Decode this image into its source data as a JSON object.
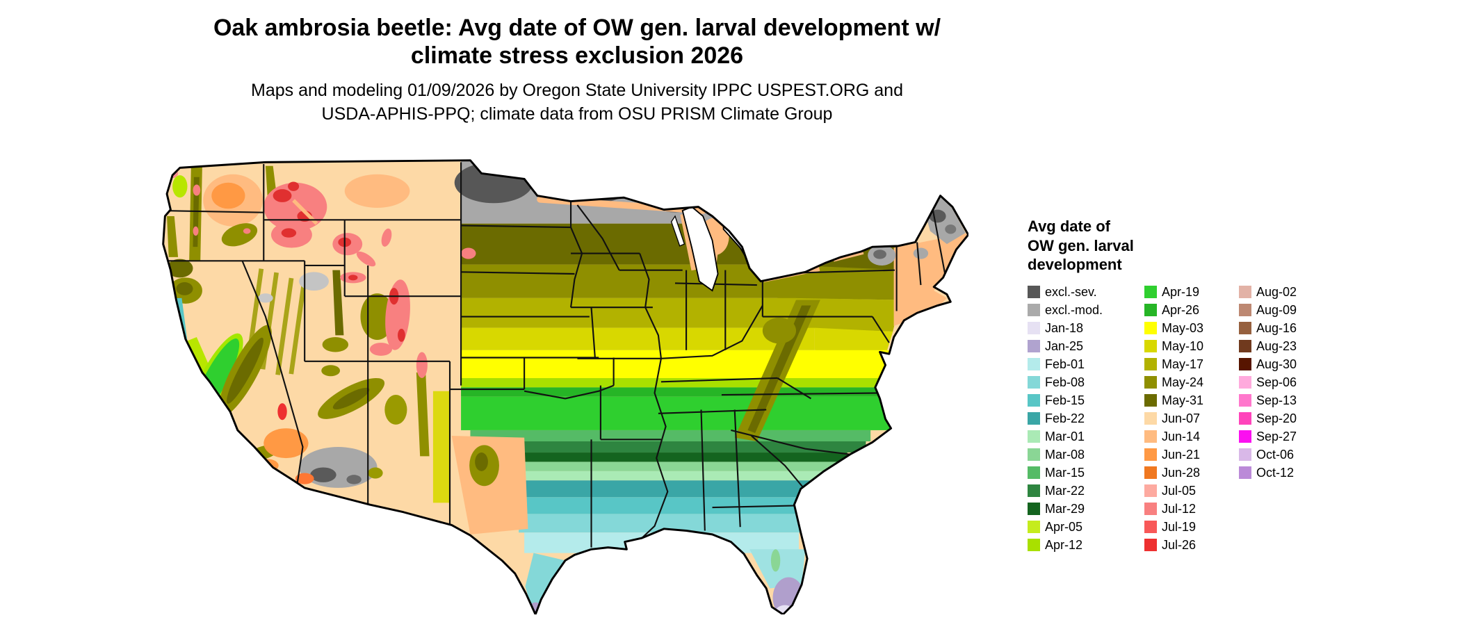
{
  "header": {
    "title": "Oak ambrosia beetle: Avg date of OW gen. larval development w/\nclimate stress exclusion 2026",
    "subtitle": "Maps and modeling 01/09/2026 by Oregon State University IPPC USPEST.ORG and\nUSDA-APHIS-PPQ; climate data from OSU PRISM Climate Group"
  },
  "legend": {
    "title": "Avg date of\nOW gen. larval\ndevelopment",
    "columns": [
      [
        {
          "label": "excl.-sev.",
          "color": "#575757"
        },
        {
          "label": "excl.-mod.",
          "color": "#aaaaaa"
        },
        {
          "label": "Jan-18",
          "color": "#e6e1f3"
        },
        {
          "label": "Jan-25",
          "color": "#b0a3cf"
        },
        {
          "label": "Feb-01",
          "color": "#b4ebeb"
        },
        {
          "label": "Feb-08",
          "color": "#84d8d8"
        },
        {
          "label": "Feb-15",
          "color": "#58c6c6"
        },
        {
          "label": "Feb-22",
          "color": "#3aa6a6"
        },
        {
          "label": "Mar-01",
          "color": "#aaeab5"
        },
        {
          "label": "Mar-08",
          "color": "#8ad695"
        },
        {
          "label": "Mar-15",
          "color": "#55bb66"
        },
        {
          "label": "Mar-22",
          "color": "#2e8540"
        },
        {
          "label": "Mar-29",
          "color": "#14641f"
        },
        {
          "label": "Apr-05",
          "color": "#c5ec1e"
        },
        {
          "label": "Apr-12",
          "color": "#a9e000"
        }
      ],
      [
        {
          "label": "Apr-19",
          "color": "#2fcf2f"
        },
        {
          "label": "Apr-26",
          "color": "#26b526"
        },
        {
          "label": "May-03",
          "color": "#ffff00"
        },
        {
          "label": "May-10",
          "color": "#d8d800"
        },
        {
          "label": "May-17",
          "color": "#b2b200"
        },
        {
          "label": "May-24",
          "color": "#8f8f00"
        },
        {
          "label": "May-31",
          "color": "#6b6b00"
        },
        {
          "label": "Jun-07",
          "color": "#fdd9a6"
        },
        {
          "label": "Jun-14",
          "color": "#ffbb80"
        },
        {
          "label": "Jun-21",
          "color": "#ff9944"
        },
        {
          "label": "Jun-28",
          "color": "#f07820"
        },
        {
          "label": "Jul-05",
          "color": "#fdaaa0"
        },
        {
          "label": "Jul-12",
          "color": "#f88080"
        },
        {
          "label": "Jul-19",
          "color": "#f85858"
        },
        {
          "label": "Jul-26",
          "color": "#ee3030"
        }
      ],
      [
        {
          "label": "Aug-02",
          "color": "#e2b2a6"
        },
        {
          "label": "Aug-09",
          "color": "#bd8872"
        },
        {
          "label": "Aug-16",
          "color": "#96603e"
        },
        {
          "label": "Aug-23",
          "color": "#703a1e"
        },
        {
          "label": "Aug-30",
          "color": "#571500"
        },
        {
          "label": "Sep-06",
          "color": "#ffaadd"
        },
        {
          "label": "Sep-13",
          "color": "#ff77cc"
        },
        {
          "label": "Sep-20",
          "color": "#ff44bb"
        },
        {
          "label": "Sep-27",
          "color": "#fb10f0"
        },
        {
          "label": "Oct-06",
          "color": "#d9b8e8"
        },
        {
          "label": "Oct-12",
          "color": "#bb8ad8"
        }
      ]
    ]
  }
}
